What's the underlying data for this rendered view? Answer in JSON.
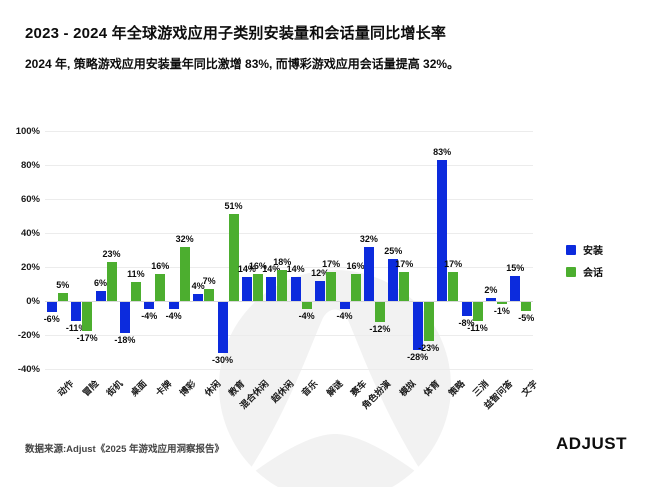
{
  "header": {
    "title": "2023 - 2024 年全球游戏应用子类别安装量和会话量同比增长率",
    "subtitle": "2024 年, 策略游戏应用安装量年同比激增 83%, 而博彩游戏应用会话量提高 32%。"
  },
  "colors": {
    "install_blue": "#0c2bdd",
    "session_green": "#4cae2f",
    "gridline": "#ececec",
    "zero_line": "#d8d8d8",
    "watermark_gray": "#f2f2f2"
  },
  "chart_data": {
    "type": "bar",
    "title": "2023 - 2024 年全球游戏应用子类别安装量和会话量同比增长率",
    "xlabel": "",
    "ylabel": "",
    "ylim": [
      -40,
      100
    ],
    "yticks": [
      "100%",
      "80%",
      "60%",
      "40%",
      "20%",
      "0%",
      "-20%",
      "-40%"
    ],
    "grid": true,
    "legend_position": "top-right",
    "categories": [
      "动作",
      "冒险",
      "街机",
      "桌面",
      "卡牌",
      "博彩",
      "休闲",
      "教育",
      "混合休闲",
      "超休闲",
      "音乐",
      "解谜",
      "赛车",
      "角色扮演",
      "模拟",
      "体育",
      "策略",
      "三消",
      "益智问答",
      "文字"
    ],
    "series": [
      {
        "name": "安装",
        "color": "#0c2bdd",
        "values": [
          -6,
          -11,
          6,
          -18,
          -4,
          -4,
          4,
          -30,
          14,
          14,
          14,
          12,
          -4,
          32,
          25,
          -28,
          83,
          -8,
          2,
          15
        ]
      },
      {
        "name": "会话",
        "color": "#4cae2f",
        "values": [
          5,
          -17,
          23,
          11,
          16,
          32,
          7,
          51,
          16,
          18,
          -4,
          17,
          16,
          -12,
          17,
          -23,
          17,
          -11,
          -1,
          -5
        ]
      }
    ],
    "value_label_format": "{v}%"
  },
  "footer": {
    "source": "数据来源:Adjust《2025 年游戏应用洞察报告》",
    "logo": "ADJUST"
  }
}
